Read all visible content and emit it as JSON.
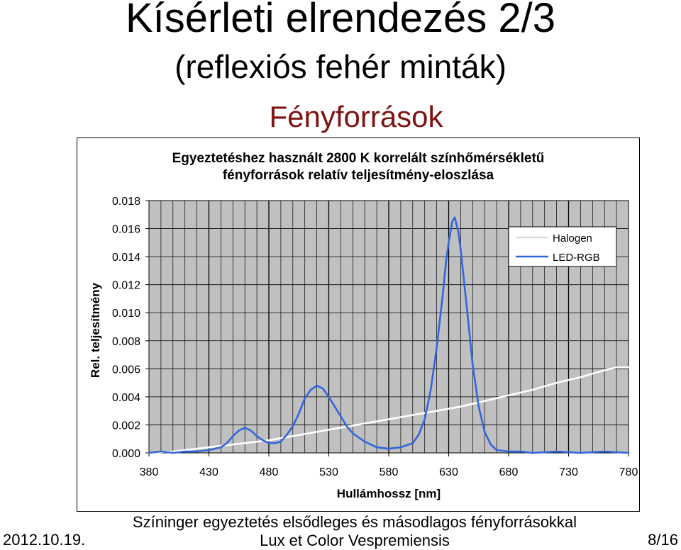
{
  "slide": {
    "title": "Kísérleti elrendezés 2/3",
    "subtitle": "(reflexiós fehér minták)",
    "section_title": "Fényforrások",
    "section_color": "#7f1313"
  },
  "footer": {
    "date": "2012.10.19.",
    "line1": "Színinger egyeztetés elsődleges és másodlagos fényforrásokkal",
    "line2": "Lux et Color Vespremiensis",
    "page": "8/16"
  },
  "chart_data": {
    "type": "line",
    "title_line1": "Egyeztetéshez használt 2800 K korrelált színhőmérsékletű",
    "title_line2": "fényforrások relatív teljesítmény-eloszlása",
    "xlabel": "Hullámhossz [nm]",
    "ylabel": "Rel. teljesítmény",
    "xlim": [
      380,
      780
    ],
    "ylim": [
      0,
      0.018
    ],
    "x_ticks": [
      "380",
      "430",
      "480",
      "530",
      "580",
      "630",
      "680",
      "730",
      "780"
    ],
    "y_ticks": [
      "0.000",
      "0.002",
      "0.004",
      "0.006",
      "0.008",
      "0.010",
      "0.012",
      "0.014",
      "0.016",
      "0.018"
    ],
    "grid": true,
    "plot_background": "#c0c0c0",
    "legend_position": "top-right",
    "series": [
      {
        "name": "Halogen",
        "color": "#ffffff",
        "x": [
          380,
          400,
          420,
          440,
          460,
          480,
          500,
          520,
          540,
          560,
          580,
          600,
          620,
          640,
          660,
          680,
          700,
          720,
          740,
          760,
          770,
          780
        ],
        "y": [
          0.0,
          0.0001,
          0.0003,
          0.0005,
          0.0007,
          0.0009,
          0.0012,
          0.0015,
          0.0018,
          0.0021,
          0.0024,
          0.0027,
          0.003,
          0.0033,
          0.0037,
          0.0041,
          0.0045,
          0.005,
          0.0054,
          0.0059,
          0.0061,
          0.0061
        ]
      },
      {
        "name": "LED-RGB",
        "color": "#3366dd",
        "x": [
          380,
          390,
          400,
          410,
          420,
          430,
          440,
          445,
          450,
          455,
          460,
          465,
          470,
          475,
          480,
          485,
          490,
          495,
          500,
          505,
          510,
          515,
          520,
          525,
          530,
          535,
          540,
          545,
          550,
          560,
          570,
          580,
          590,
          600,
          605,
          610,
          615,
          620,
          625,
          628,
          630,
          633,
          635,
          638,
          640,
          645,
          650,
          655,
          660,
          665,
          670,
          680,
          690,
          700,
          720,
          740,
          760,
          780
        ],
        "y": [
          0.0,
          0.0001,
          0.0,
          0.0001,
          0.0001,
          0.0002,
          0.0004,
          0.0007,
          0.0012,
          0.0016,
          0.0018,
          0.0016,
          0.0012,
          0.0009,
          0.0007,
          0.0007,
          0.0008,
          0.0013,
          0.0019,
          0.0028,
          0.0039,
          0.0045,
          0.0048,
          0.0046,
          0.004,
          0.0033,
          0.0026,
          0.0019,
          0.0014,
          0.0008,
          0.0004,
          0.0003,
          0.0004,
          0.0007,
          0.0013,
          0.0024,
          0.0045,
          0.0075,
          0.0112,
          0.0138,
          0.015,
          0.0165,
          0.0168,
          0.0158,
          0.0145,
          0.0105,
          0.0063,
          0.0033,
          0.0015,
          0.0006,
          0.0002,
          0.0001,
          0.0001,
          0.0,
          0.0001,
          0.0,
          0.0001,
          0.0
        ]
      }
    ]
  }
}
